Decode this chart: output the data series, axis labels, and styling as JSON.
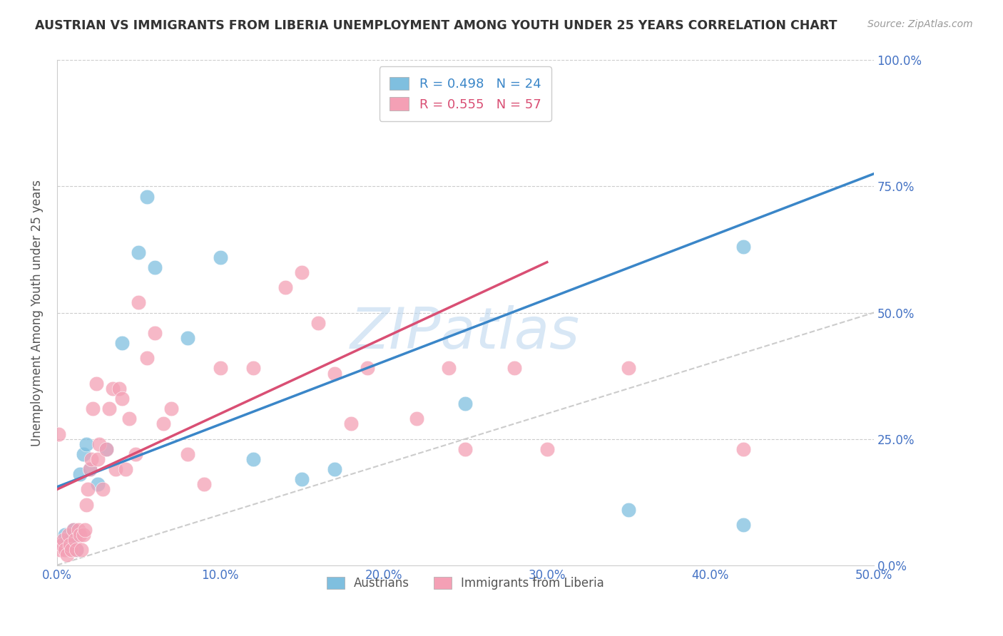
{
  "title": "AUSTRIAN VS IMMIGRANTS FROM LIBERIA UNEMPLOYMENT AMONG YOUTH UNDER 25 YEARS CORRELATION CHART",
  "source": "Source: ZipAtlas.com",
  "ylabel": "Unemployment Among Youth under 25 years",
  "legend_label1": "Austrians",
  "legend_label2": "Immigrants from Liberia",
  "R1": 0.498,
  "N1": 24,
  "R2": 0.555,
  "N2": 57,
  "xlim": [
    0.0,
    0.5
  ],
  "ylim": [
    0.0,
    1.0
  ],
  "xticks": [
    0.0,
    0.1,
    0.2,
    0.3,
    0.4,
    0.5
  ],
  "yticks": [
    0.0,
    0.25,
    0.5,
    0.75,
    1.0
  ],
  "blue_color": "#7fbfdf",
  "pink_color": "#f4a0b5",
  "blue_line_color": "#3a86c8",
  "pink_line_color": "#d94f74",
  "diag_color": "#cccccc",
  "title_color": "#333333",
  "axis_label_color": "#4472c4",
  "watermark_color": "#b8d4ee",
  "blue_scatter_x": [
    0.003,
    0.005,
    0.008,
    0.01,
    0.012,
    0.014,
    0.016,
    0.018,
    0.02,
    0.025,
    0.03,
    0.04,
    0.05,
    0.055,
    0.06,
    0.08,
    0.1,
    0.12,
    0.15,
    0.17,
    0.25,
    0.35,
    0.42,
    0.42
  ],
  "blue_scatter_y": [
    0.04,
    0.06,
    0.05,
    0.07,
    0.03,
    0.18,
    0.22,
    0.24,
    0.19,
    0.16,
    0.23,
    0.44,
    0.62,
    0.73,
    0.59,
    0.45,
    0.61,
    0.21,
    0.17,
    0.19,
    0.32,
    0.11,
    0.08,
    0.63
  ],
  "pink_scatter_x": [
    0.001,
    0.002,
    0.003,
    0.004,
    0.005,
    0.006,
    0.007,
    0.008,
    0.009,
    0.01,
    0.011,
    0.012,
    0.013,
    0.014,
    0.015,
    0.016,
    0.017,
    0.018,
    0.019,
    0.02,
    0.021,
    0.022,
    0.024,
    0.025,
    0.026,
    0.028,
    0.03,
    0.032,
    0.034,
    0.036,
    0.038,
    0.04,
    0.042,
    0.044,
    0.048,
    0.05,
    0.055,
    0.06,
    0.065,
    0.07,
    0.08,
    0.09,
    0.1,
    0.12,
    0.14,
    0.15,
    0.16,
    0.17,
    0.18,
    0.19,
    0.22,
    0.24,
    0.25,
    0.28,
    0.3,
    0.35,
    0.42
  ],
  "pink_scatter_y": [
    0.26,
    0.03,
    0.04,
    0.05,
    0.03,
    0.02,
    0.06,
    0.04,
    0.03,
    0.07,
    0.05,
    0.03,
    0.07,
    0.06,
    0.03,
    0.06,
    0.07,
    0.12,
    0.15,
    0.19,
    0.21,
    0.31,
    0.36,
    0.21,
    0.24,
    0.15,
    0.23,
    0.31,
    0.35,
    0.19,
    0.35,
    0.33,
    0.19,
    0.29,
    0.22,
    0.52,
    0.41,
    0.46,
    0.28,
    0.31,
    0.22,
    0.16,
    0.39,
    0.39,
    0.55,
    0.58,
    0.48,
    0.38,
    0.28,
    0.39,
    0.29,
    0.39,
    0.23,
    0.39,
    0.23,
    0.39,
    0.23
  ],
  "blue_trendline_x": [
    0.0,
    0.5
  ],
  "blue_trendline_y": [
    0.155,
    0.775
  ],
  "pink_trendline_x": [
    0.0,
    0.3
  ],
  "pink_trendline_y": [
    0.15,
    0.6
  ]
}
